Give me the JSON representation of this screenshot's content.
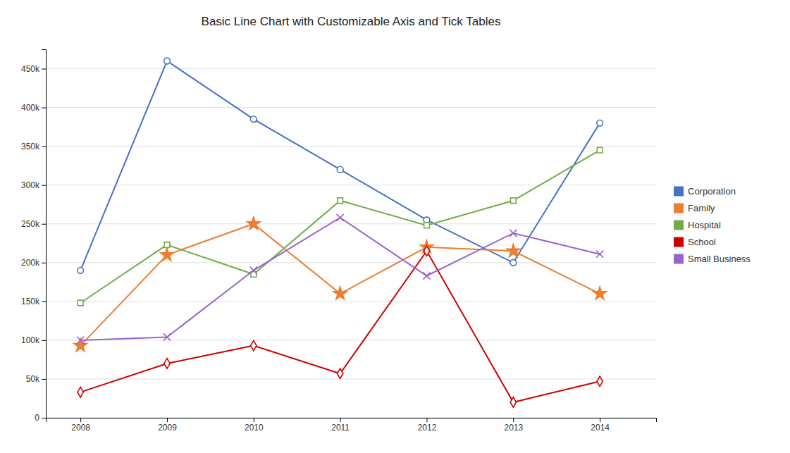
{
  "chart_data": {
    "type": "line",
    "title": "Basic Line Chart with Customizable Axis and Tick Tables",
    "x": [
      2008,
      2009,
      2010,
      2011,
      2012,
      2013,
      2014
    ],
    "xlim": [
      2007.6,
      2014.65
    ],
    "xticks": [
      2008,
      2009,
      2010,
      2011,
      2012,
      2013,
      2014
    ],
    "ylim": [
      0,
      475000
    ],
    "yticks": [
      0,
      {
        "value": 50000,
        "label": "50k"
      },
      {
        "value": 100000,
        "label": "100k"
      },
      {
        "value": 150000,
        "label": "150k"
      },
      {
        "value": 200000,
        "label": "200k"
      },
      {
        "value": 250000,
        "label": "250k"
      },
      {
        "value": 300000,
        "label": "300k"
      },
      {
        "value": 350000,
        "label": "350k"
      },
      {
        "value": 400000,
        "label": "400k"
      },
      {
        "value": 450000,
        "label": "450k"
      }
    ],
    "grid": true,
    "legend": "right",
    "series": [
      {
        "name": "Corporation",
        "color": "#4472C4",
        "marker": "circle",
        "values": [
          190000,
          460000,
          385000,
          320000,
          255000,
          200000,
          380000
        ]
      },
      {
        "name": "Family",
        "color": "#ED7D31",
        "marker": "star",
        "values": [
          93000,
          210000,
          250000,
          160000,
          220000,
          215000,
          160000
        ]
      },
      {
        "name": "Hospital",
        "color": "#70AD47",
        "marker": "square",
        "values": [
          148000,
          223000,
          185000,
          280000,
          248000,
          280000,
          345000
        ]
      },
      {
        "name": "School",
        "color": "#CC0000",
        "marker": "diamond",
        "values": [
          33000,
          70000,
          93000,
          57000,
          215000,
          20000,
          47000
        ]
      },
      {
        "name": "Small Business",
        "color": "#9966CC",
        "marker": "x",
        "values": [
          100000,
          104000,
          190000,
          258000,
          183000,
          238000,
          211000
        ]
      }
    ]
  }
}
